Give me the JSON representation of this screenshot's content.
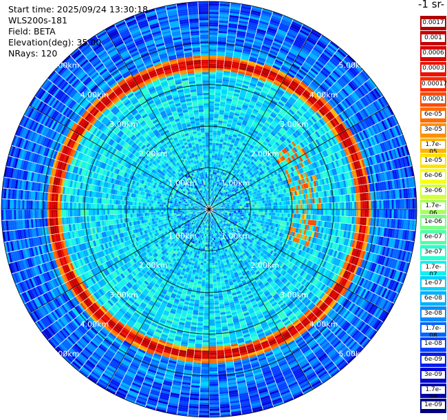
{
  "header": {
    "start_time": "Start time: 2025/09/24 13:30:18",
    "instrument": "WLS200s-181",
    "field": "Field: BETA",
    "elevation": "Elevation(deg): 35.00",
    "nrays": "NRays: 120"
  },
  "colorbar": {
    "unit_title": "-1 sr-",
    "levels": [
      {
        "label": "0.0017",
        "color": "#b00000"
      },
      {
        "label": "0.001",
        "color": "#c40000"
      },
      {
        "label": "0.0006",
        "color": "#dc0000"
      },
      {
        "label": "0.0003",
        "color": "#ee1000"
      },
      {
        "label": "0.00017",
        "color": "#ff2800"
      },
      {
        "label": "0.0001",
        "color": "#ff4a00"
      },
      {
        "label": "6e-05",
        "color": "#ff6c00"
      },
      {
        "label": "3e-05",
        "color": "#ff9000"
      },
      {
        "label": "1.7e-05",
        "color": "#ffb400"
      },
      {
        "label": "1e-05",
        "color": "#ffe000"
      },
      {
        "label": "6e-06",
        "color": "#f6ff1a"
      },
      {
        "label": "3e-06",
        "color": "#d4ff3a"
      },
      {
        "label": "1.7e-06",
        "color": "#a8ff60"
      },
      {
        "label": "1e-06",
        "color": "#7cff84"
      },
      {
        "label": "6e-07",
        "color": "#50ffa8"
      },
      {
        "label": "3e-07",
        "color": "#2cffd0"
      },
      {
        "label": "1.7e-07",
        "color": "#14f0ee"
      },
      {
        "label": "1e-07",
        "color": "#00d2ff"
      },
      {
        "label": "6e-08",
        "color": "#00b0ff"
      },
      {
        "label": "3e-08",
        "color": "#008cff"
      },
      {
        "label": "1.7e-08",
        "color": "#0066ff"
      },
      {
        "label": "1e-08",
        "color": "#0040ff"
      },
      {
        "label": "6e-09",
        "color": "#001cf0"
      },
      {
        "label": "3e-09",
        "color": "#0006d0"
      },
      {
        "label": "1.7e-09",
        "color": "#0000a8"
      },
      {
        "label": "1e-09",
        "color": "#000080"
      }
    ]
  },
  "chart_data": {
    "type": "heatmap",
    "projection": "polar-ppi",
    "field": "BETA",
    "elevation_deg": 35.0,
    "n_rays": 120,
    "max_range_km": 5.0,
    "grid": true,
    "azimuth_lines_deg": [
      0,
      30,
      60,
      90,
      120,
      150,
      180,
      210,
      240,
      270,
      300,
      330
    ],
    "range_ring_km": [
      1.0,
      2.0,
      3.0,
      4.0,
      5.0
    ],
    "ring_labels": [
      "1.00km",
      "2.00km",
      "3.00km",
      "4.00km",
      "5.00km"
    ],
    "colorscale": "log",
    "value_range": [
      1e-09,
      0.0017
    ],
    "features": [
      {
        "description_value": "near-field background",
        "range_km": [
          0.0,
          3.4
        ],
        "typical_value": 1.7e-07
      },
      {
        "description_value": "aerosol layer peak",
        "range_km": [
          3.5,
          3.75
        ],
        "typical_value": 0.0003
      },
      {
        "description_value": "beyond layer",
        "range_km": [
          3.8,
          5.0
        ],
        "typical_value": 3e-08
      }
    ]
  }
}
